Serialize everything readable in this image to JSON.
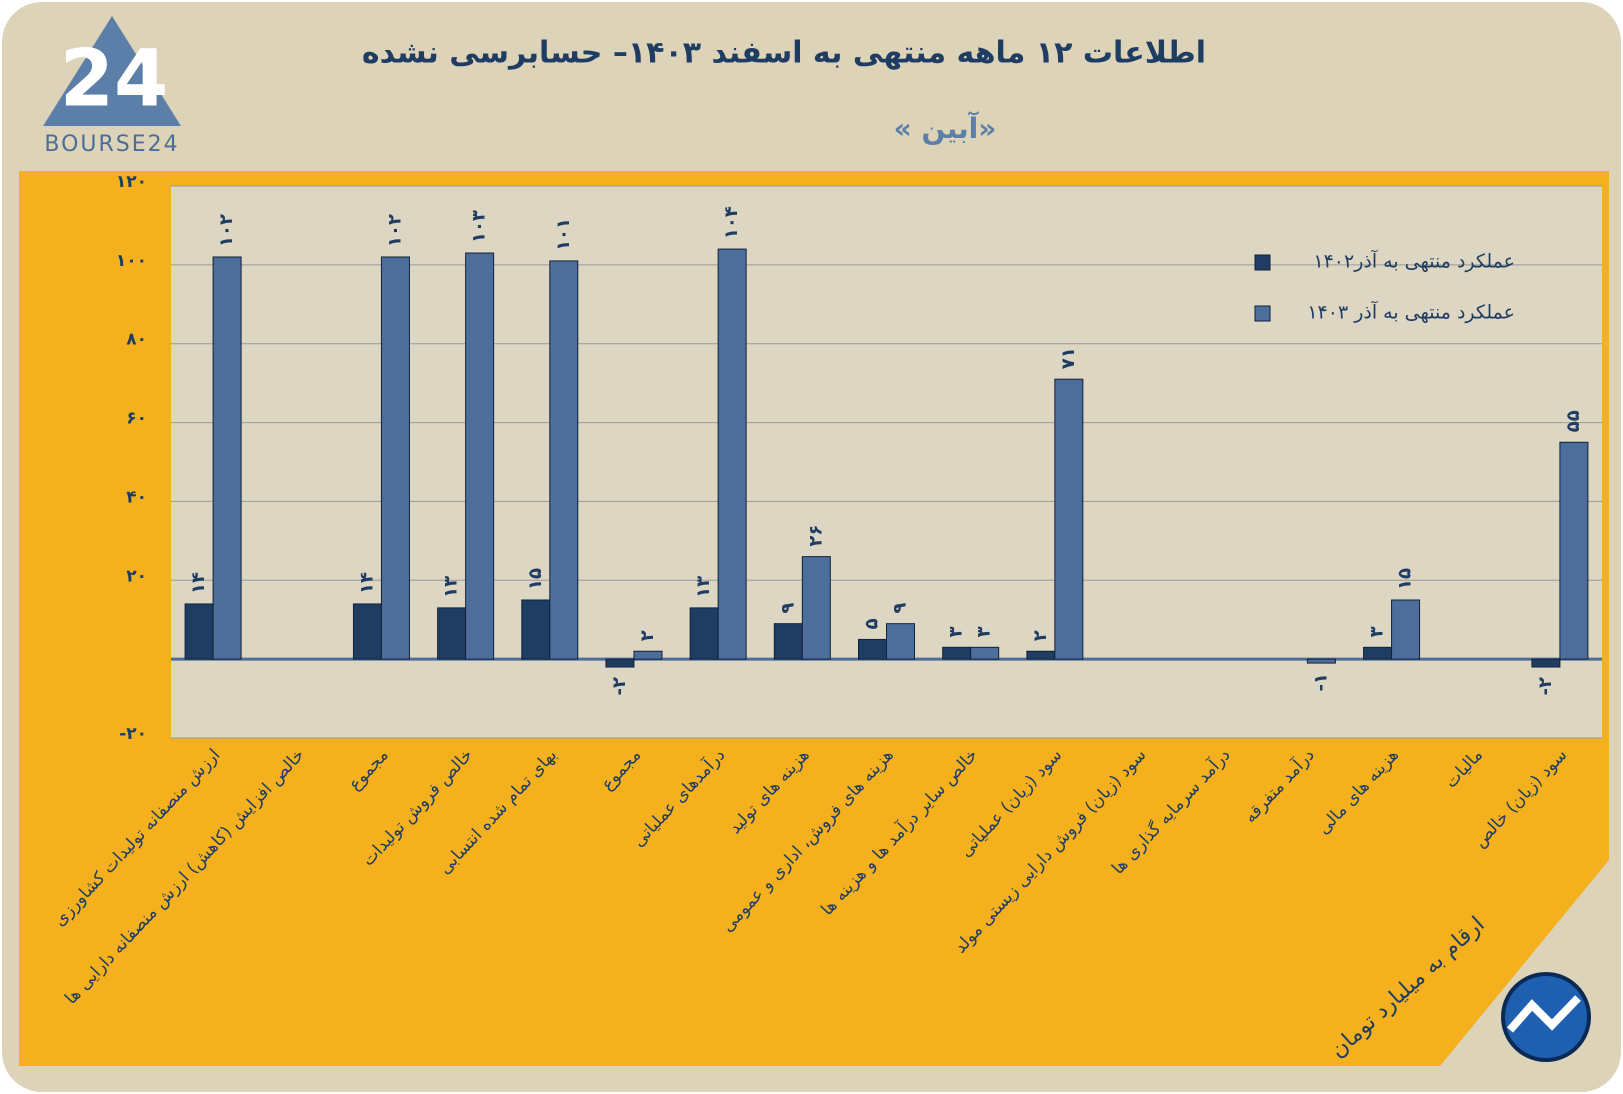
{
  "brand": {
    "logo_number": "24",
    "logo_name": "BOURSE24"
  },
  "chart_data": {
    "type": "bar",
    "title": "اطلاعات ۱۲ ماهه منتهی به اسفند  ۱۴۰۳– حسابرسی نشده",
    "subtitle": "« آبین»",
    "note": "ارقام به میلیارد تومان",
    "categories": [
      "ارزش منصفانه تولیدات کشاورزی",
      "خالص افزایش (کاهش) ارزش منصفانه دارایی ها",
      "مجموع",
      "خالص فروش تولیدات",
      "بهای تمام شده انتسابی",
      "مجموع",
      "درآمدهای عملیاتی",
      "هزینه های تولید",
      "هزینه های فروش، اداری و عمومی",
      "خالص سایر درآمد ها و هزینه ها",
      "سود (زیان) عملیاتی",
      "سود (زیان) فروش دارایی زیستی مولد",
      "درآمد سرمایه گذاری ها",
      "درآمد متفرقه",
      "هزینه های مالی",
      "مالیات",
      "سود (زیان) خالص"
    ],
    "series": [
      {
        "name": "عملکرد منتهی به آذر۱۴۰۲",
        "color": "#1f3d63",
        "values": [
          14,
          null,
          14,
          13,
          15,
          -2,
          13,
          9,
          5,
          3,
          2,
          null,
          null,
          null,
          3,
          null,
          -2
        ],
        "value_labels": [
          "۱۴",
          null,
          "۱۴",
          "۱۳",
          "۱۵",
          "-۲",
          "۱۳",
          "۹",
          "۵",
          "۳",
          "۲",
          null,
          null,
          null,
          "۳",
          null,
          "-۲"
        ]
      },
      {
        "name": "عملکرد منتهی به آذر ۱۴۰۳",
        "color": "#4d6e9a",
        "values": [
          102,
          null,
          102,
          103,
          101,
          2,
          104,
          26,
          9,
          3,
          71,
          null,
          null,
          -1,
          15,
          null,
          55
        ],
        "value_labels": [
          "۱۰۲",
          null,
          "۱۰۲",
          "۱۰۳",
          "۱۰۱",
          "۲",
          "۱۰۴",
          "۲۶",
          "۹",
          "۳",
          "۷۱",
          null,
          null,
          "-۱",
          "۱۵",
          null,
          "۵۵"
        ]
      }
    ],
    "ylim": [
      -20,
      120
    ],
    "yticks": [
      {
        "value": -20,
        "label": "-۲۰"
      },
      {
        "value": 20,
        "label": "۲۰"
      },
      {
        "value": 40,
        "label": "۴۰"
      },
      {
        "value": 60,
        "label": "۶۰"
      },
      {
        "value": 80,
        "label": "۸۰"
      },
      {
        "value": 100,
        "label": "۱۰۰"
      },
      {
        "value": 120,
        "label": "۱۲۰"
      }
    ],
    "grid": true,
    "legend": "top-right"
  }
}
